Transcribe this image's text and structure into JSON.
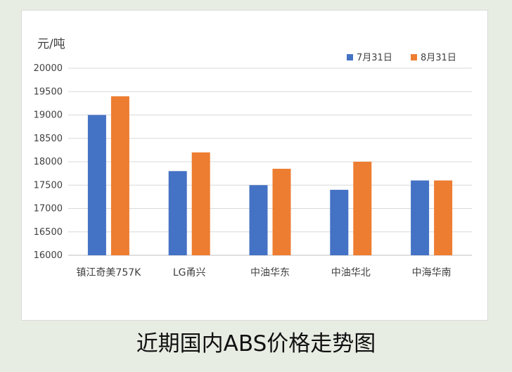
{
  "caption": "近期国内ABS价格走势图",
  "chart_data": {
    "type": "bar",
    "title": "",
    "ylabel": "元/吨",
    "xlabel": "",
    "ylim": [
      16000,
      20000
    ],
    "yticks": [
      16000,
      16500,
      17000,
      17500,
      18000,
      18500,
      19000,
      19500,
      20000
    ],
    "categories": [
      "镇江奇美757K",
      "LG甬兴",
      "中油华东",
      "中油华北",
      "中海华南"
    ],
    "series": [
      {
        "name": "7月31日",
        "color": "#4472c4",
        "values": [
          19000,
          17800,
          17500,
          17400,
          17600
        ]
      },
      {
        "name": "8月31日",
        "color": "#ed7d31",
        "values": [
          19400,
          18200,
          17850,
          18000,
          17600
        ]
      }
    ],
    "grid": true,
    "legend_position": "top-right"
  }
}
